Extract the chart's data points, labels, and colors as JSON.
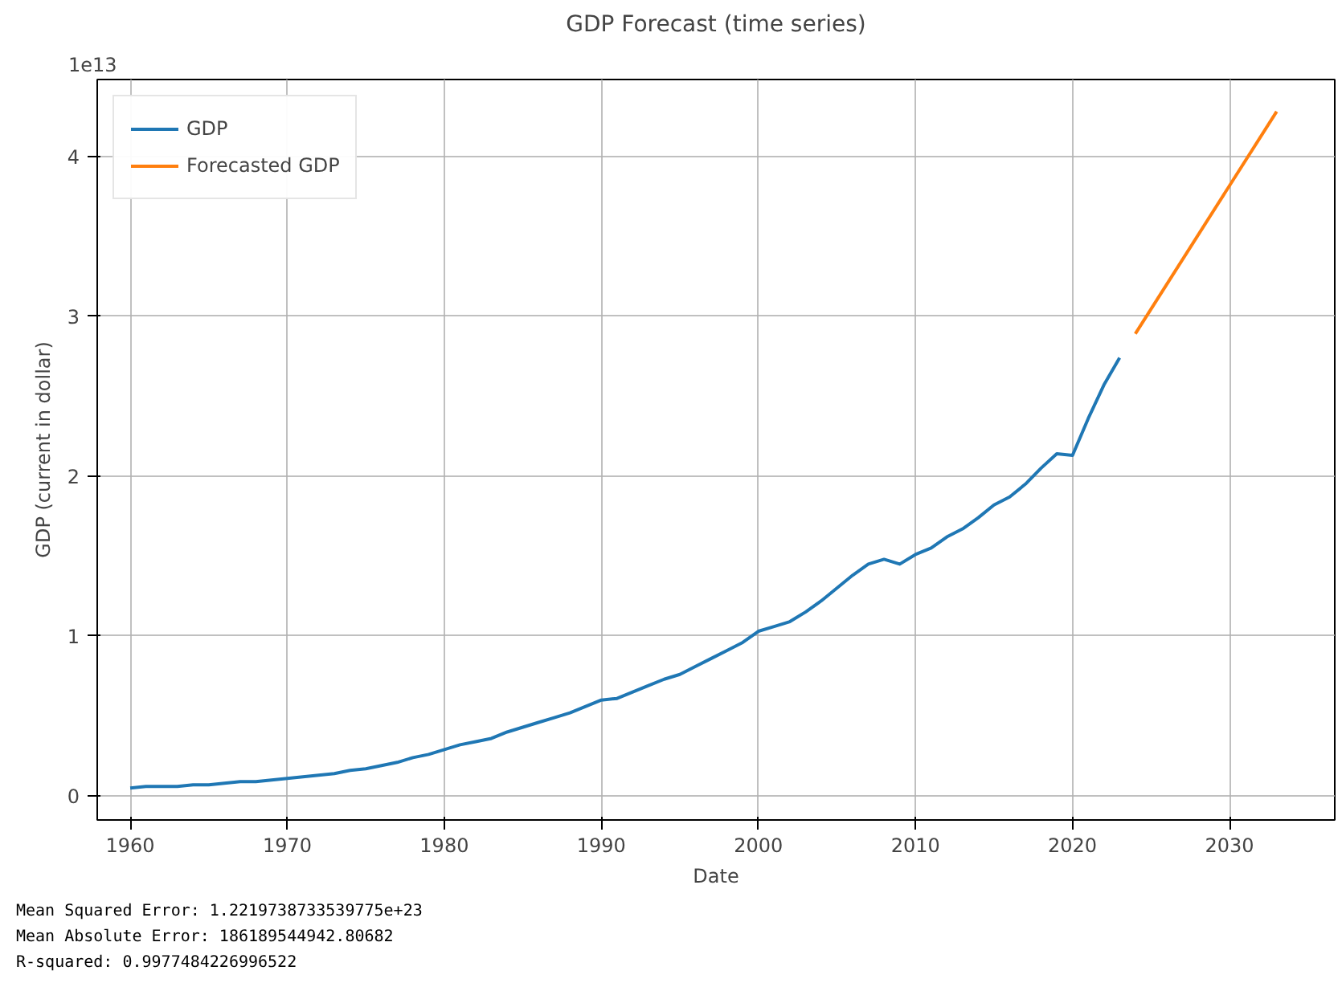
{
  "chart_data": {
    "type": "line",
    "title": "GDP Forecast (time series)",
    "xlabel": "Date",
    "ylabel": "GDP (current in dollar)",
    "series": [
      {
        "name": "GDP",
        "color": "#1f77b4",
        "x": [
          1960,
          1961,
          1962,
          1963,
          1964,
          1965,
          1966,
          1967,
          1968,
          1969,
          1970,
          1971,
          1972,
          1973,
          1974,
          1975,
          1976,
          1977,
          1978,
          1979,
          1980,
          1981,
          1982,
          1983,
          1984,
          1985,
          1986,
          1987,
          1988,
          1989,
          1990,
          1991,
          1992,
          1993,
          1994,
          1995,
          1996,
          1997,
          1998,
          1999,
          2000,
          2001,
          2002,
          2003,
          2004,
          2005,
          2006,
          2007,
          2008,
          2009,
          2010,
          2011,
          2012,
          2013,
          2014,
          2015,
          2016,
          2017,
          2018,
          2019,
          2020,
          2021,
          2022,
          2023
        ],
        "values": [
          0.05,
          0.06,
          0.06,
          0.06,
          0.07,
          0.07,
          0.08,
          0.09,
          0.09,
          0.1,
          0.11,
          0.12,
          0.13,
          0.14,
          0.16,
          0.17,
          0.19,
          0.21,
          0.24,
          0.26,
          0.29,
          0.32,
          0.34,
          0.36,
          0.4,
          0.43,
          0.46,
          0.49,
          0.52,
          0.56,
          0.6,
          0.61,
          0.65,
          0.69,
          0.73,
          0.76,
          0.81,
          0.86,
          0.91,
          0.96,
          1.03,
          1.06,
          1.09,
          1.15,
          1.22,
          1.3,
          1.38,
          1.45,
          1.48,
          1.45,
          1.51,
          1.55,
          1.62,
          1.67,
          1.74,
          1.82,
          1.87,
          1.95,
          2.05,
          2.14,
          2.13,
          2.36,
          2.57,
          2.74
        ]
      },
      {
        "name": "Forecasted GDP",
        "color": "#ff7f0e",
        "x": [
          2024,
          2033
        ],
        "values": [
          2.89,
          4.28
        ]
      }
    ],
    "xlim": [
      1957.9,
      2036.7
    ],
    "xticks": [
      1960,
      1970,
      1980,
      1990,
      2000,
      2010,
      2020,
      2030
    ],
    "ylim": [
      -0.15,
      4.48
    ],
    "yticks": [
      0,
      1,
      2,
      3,
      4
    ],
    "grid": true,
    "legend": "top left",
    "marker": "none",
    "line_style": "solid",
    "annotations": [
      "1e13",
      "Mean Squared Error: 1.2219738733539775e+23",
      "Mean Absolute Error: 186189544942.80682",
      "R-squared: 0.9977484226996522"
    ]
  }
}
